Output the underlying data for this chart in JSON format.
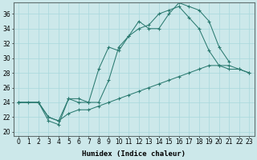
{
  "bg_color": "#cce8ea",
  "line_color": "#2a7a70",
  "grid_color": "#a8d8dc",
  "xlabel": "Humidex (Indice chaleur)",
  "xlabel_fontsize": 6.5,
  "tick_fontsize": 5.5,
  "ylabel_ticks": [
    20,
    22,
    24,
    26,
    28,
    30,
    32,
    34,
    36
  ],
  "xlim": [
    -0.5,
    23.5
  ],
  "ylim": [
    19.5,
    37.5
  ],
  "series1_x": [
    0,
    1,
    2,
    3,
    4,
    5,
    6,
    7,
    8,
    9,
    10,
    11,
    12,
    13,
    14,
    15,
    16,
    17,
    18,
    19,
    20,
    21
  ],
  "series1_y": [
    24.0,
    24.0,
    24.0,
    21.5,
    21.0,
    24.5,
    24.5,
    24.0,
    28.5,
    31.5,
    31.0,
    33.0,
    35.0,
    34.0,
    34.0,
    36.0,
    37.5,
    37.0,
    36.5,
    35.0,
    31.5,
    29.5
  ],
  "series2_x": [
    0,
    2,
    3,
    4,
    5,
    6,
    7,
    8,
    9,
    10,
    11,
    12,
    13,
    14,
    15,
    16,
    17,
    18,
    19,
    20,
    21,
    22,
    23
  ],
  "series2_y": [
    24.0,
    24.0,
    22.0,
    21.5,
    24.5,
    24.0,
    24.0,
    24.0,
    27.0,
    31.5,
    33.0,
    34.0,
    34.5,
    36.0,
    36.5,
    37.0,
    35.5,
    34.0,
    31.0,
    29.0,
    28.5,
    28.5,
    28.0
  ],
  "series3_x": [
    0,
    2,
    3,
    4,
    5,
    6,
    7,
    8,
    9,
    10,
    11,
    12,
    13,
    14,
    15,
    16,
    17,
    18,
    19,
    20,
    21,
    22,
    23
  ],
  "series3_y": [
    24.0,
    24.0,
    22.0,
    21.5,
    22.5,
    23.0,
    23.0,
    23.5,
    24.0,
    24.5,
    25.0,
    25.5,
    26.0,
    26.5,
    27.0,
    27.5,
    28.0,
    28.5,
    29.0,
    29.0,
    29.0,
    28.5,
    28.0
  ]
}
